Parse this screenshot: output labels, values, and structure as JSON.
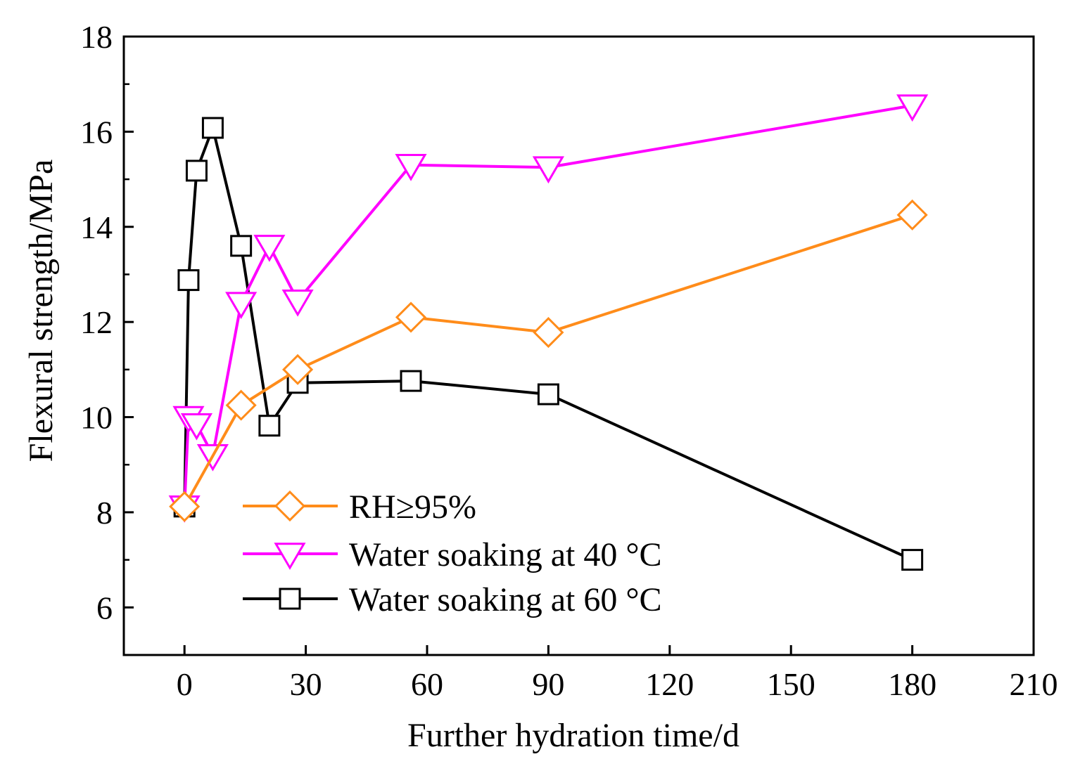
{
  "chart_data": {
    "type": "line",
    "title": "",
    "xlabel": "Further hydration time/d",
    "ylabel": "Flexural strength/MPa",
    "xlim": [
      -15,
      210
    ],
    "ylim": [
      5,
      18
    ],
    "xticks": [
      0,
      30,
      60,
      90,
      120,
      150,
      180,
      210
    ],
    "xtick_labels": [
      "0",
      "30",
      "60",
      "90",
      "120",
      "150",
      "180",
      "210"
    ],
    "yticks": [
      6,
      8,
      10,
      12,
      14,
      16,
      18
    ],
    "ytick_labels": [
      "6",
      "8",
      "10",
      "12",
      "14",
      "16",
      "18"
    ],
    "grid": false,
    "legend_position": "bottom-center",
    "series": [
      {
        "name": "RH≥95%",
        "color": "#ff8c1a",
        "marker": "diamond",
        "x": [
          0,
          14,
          28,
          56,
          90,
          180
        ],
        "y": [
          8.12,
          10.25,
          11.0,
          12.1,
          11.78,
          14.25
        ]
      },
      {
        "name": "Water soaking at 40 °C",
        "color": "#ff00ff",
        "marker": "triangle-down",
        "x": [
          0,
          1,
          3,
          7,
          14,
          21,
          28,
          56,
          90,
          180
        ],
        "y": [
          8.12,
          10.0,
          9.85,
          9.2,
          12.4,
          13.6,
          12.45,
          15.3,
          15.25,
          16.55
        ]
      },
      {
        "name": "Water soaking at 60 °C",
        "color": "#000000",
        "marker": "square",
        "x": [
          0,
          1,
          3,
          7,
          14,
          21,
          28,
          56,
          90,
          180
        ],
        "y": [
          8.12,
          12.88,
          15.18,
          16.08,
          13.6,
          9.82,
          10.72,
          10.76,
          10.48,
          7.0
        ]
      }
    ]
  }
}
